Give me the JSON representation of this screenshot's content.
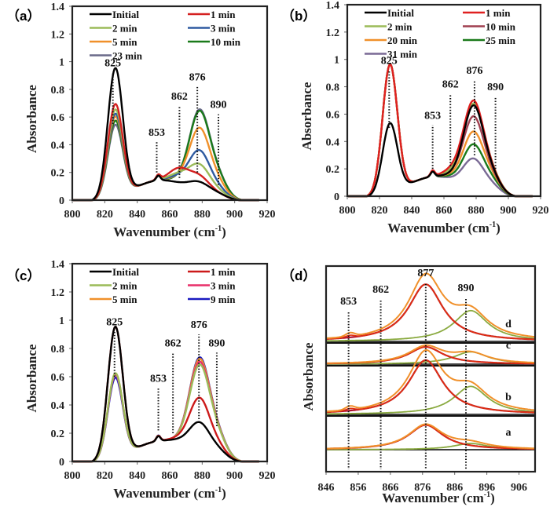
{
  "chart_data": [
    {
      "panel": "(a)",
      "type": "line",
      "xlabel": "Wavenumber (cm-1)",
      "ylabel": "Absorbance",
      "xlim": [
        800,
        920
      ],
      "ylim": [
        0,
        1.4
      ],
      "xticks": [
        "800",
        "820",
        "840",
        "860",
        "880",
        "900",
        "920"
      ],
      "yticks": [
        "0",
        "0.2",
        "0.4",
        "0.6",
        "0.8",
        "1",
        "1.2",
        "1.4"
      ],
      "legend": "top",
      "annotations": [
        {
          "label": "825",
          "x": 825,
          "y0": 0.55,
          "y1": 0.92
        },
        {
          "label": "853",
          "x": 852,
          "y0": 0.2,
          "y1": 0.42
        },
        {
          "label": "862",
          "x": 866,
          "y0": 0.16,
          "y1": 0.68
        },
        {
          "label": "876",
          "x": 877,
          "y0": 0.2,
          "y1": 0.82
        },
        {
          "label": "890",
          "x": 890,
          "y0": 0.11,
          "y1": 0.62
        }
      ],
      "series": [
        {
          "name": "Initial",
          "color": "#000000",
          "p825": 0.93,
          "p853": 0.2,
          "p876": 0.16,
          "p890": 0.06,
          "sh862": 0.0
        },
        {
          "name": "1 min",
          "color": "#d42020",
          "p825": 0.67,
          "p853": 0.2,
          "p876": 0.2,
          "p890": 0.05,
          "sh862": 0.1
        },
        {
          "name": "2 min",
          "color": "#9bbb59",
          "p825": 0.63,
          "p853": 0.21,
          "p876": 0.28,
          "p890": 0.1,
          "sh862": 0.06
        },
        {
          "name": "3 min",
          "color": "#2e5aa0",
          "p825": 0.6,
          "p853": 0.2,
          "p876": 0.38,
          "p890": 0.15,
          "sh862": 0.04
        },
        {
          "name": "5 min",
          "color": "#f0902a",
          "p825": 0.58,
          "p853": 0.21,
          "p876": 0.54,
          "p890": 0.24,
          "sh862": 0.03
        },
        {
          "name": "10 min",
          "color": "#1a7a1a",
          "p825": 0.55,
          "p853": 0.19,
          "p876": 0.66,
          "p890": 0.34,
          "sh862": 0.02
        },
        {
          "name": "23 min",
          "color": "#6a6a8a",
          "p825": 0.52,
          "p853": 0.18,
          "p876": 0.67,
          "p890": 0.35,
          "sh862": 0.02
        }
      ]
    },
    {
      "panel": "(b)",
      "type": "line",
      "xlabel": "Wavenumber (cm-1)",
      "ylabel": "Absorbance",
      "xlim": [
        800,
        920
      ],
      "ylim": [
        0,
        1.4
      ],
      "xticks": [
        "800",
        "820",
        "840",
        "860",
        "880",
        "900",
        "920"
      ],
      "yticks": [
        "0",
        "0.2",
        "0.4",
        "0.6",
        "0.8",
        "1",
        "1.2",
        "1.4"
      ],
      "legend": "top",
      "annotations": [
        {
          "label": "825",
          "x": 826,
          "y0": 0.5,
          "y1": 0.92
        },
        {
          "label": "853",
          "x": 853,
          "y0": 0.2,
          "y1": 0.52
        },
        {
          "label": "862",
          "x": 864,
          "y0": 0.22,
          "y1": 0.75
        },
        {
          "label": "876",
          "x": 879,
          "y0": 0.3,
          "y1": 0.85
        },
        {
          "label": "890",
          "x": 892,
          "y0": 0.2,
          "y1": 0.73
        }
      ],
      "series": [
        {
          "name": "Initial",
          "color": "#000000",
          "p825": 0.51,
          "p853": 0.2,
          "p876": 0.68,
          "p890": 0.3,
          "sh862": 0.02
        },
        {
          "name": "1 min",
          "color": "#e02020",
          "p825": 0.94,
          "p853": 0.24,
          "p876": 0.71,
          "p890": 0.32,
          "sh862": 0.06
        },
        {
          "name": "2 min",
          "color": "#9bbb59",
          "p825": 0.94,
          "p853": 0.23,
          "p876": 0.69,
          "p890": 0.34,
          "sh862": 0.04
        },
        {
          "name": "10 min",
          "color": "#a04050",
          "p825": 0.94,
          "p853": 0.23,
          "p876": 0.6,
          "p890": 0.28,
          "sh862": 0.03
        },
        {
          "name": "20 min",
          "color": "#f0902a",
          "p825": 0.94,
          "p853": 0.23,
          "p876": 0.49,
          "p890": 0.27,
          "sh862": 0.02
        },
        {
          "name": "25 min",
          "color": "#1a7a1a",
          "p825": 0.94,
          "p853": 0.22,
          "p876": 0.4,
          "p890": 0.22,
          "sh862": 0.01
        },
        {
          "name": "31 min",
          "color": "#7a6a95",
          "p825": 0.94,
          "p853": 0.22,
          "p876": 0.3,
          "p890": 0.14,
          "sh862": 0.0
        }
      ]
    },
    {
      "panel": "(c)",
      "type": "line",
      "xlabel": "Wavenumber (cm-1)",
      "ylabel": "Absorbance",
      "xlim": [
        800,
        920
      ],
      "ylim": [
        0,
        1.4
      ],
      "xticks": [
        "800",
        "820",
        "840",
        "860",
        "880",
        "900",
        "920"
      ],
      "yticks": [
        "0",
        "0.2",
        "0.4",
        "0.6",
        "0.8",
        "1",
        "1.2",
        "1.4"
      ],
      "legend": "top",
      "annotations": [
        {
          "label": "825",
          "x": 826,
          "y0": 0.6,
          "y1": 0.92
        },
        {
          "label": "853",
          "x": 853,
          "y0": 0.22,
          "y1": 0.52
        },
        {
          "label": "862",
          "x": 862,
          "y0": 0.2,
          "y1": 0.77
        },
        {
          "label": "876",
          "x": 878,
          "y0": 0.3,
          "y1": 0.9
        },
        {
          "label": "890",
          "x": 889,
          "y0": 0.25,
          "y1": 0.77
        }
      ],
      "series": [
        {
          "name": "Initial",
          "color": "#000000",
          "p825": 0.93,
          "p853": 0.2,
          "p876": 0.3,
          "p890": 0.14,
          "sh862": 0.02
        },
        {
          "name": "1 min",
          "color": "#cc1a1a",
          "p825": 0.93,
          "p853": 0.21,
          "p876": 0.47,
          "p890": 0.2,
          "sh862": 0.03
        },
        {
          "name": "2 min",
          "color": "#9bbb59",
          "p825": 0.6,
          "p853": 0.22,
          "p876": 0.7,
          "p890": 0.36,
          "sh862": 0.02
        },
        {
          "name": "3 min",
          "color": "#e8306a",
          "p825": 0.59,
          "p853": 0.22,
          "p876": 0.72,
          "p890": 0.36,
          "sh862": 0.02
        },
        {
          "name": "5 min",
          "color": "#f0902a",
          "p825": 0.6,
          "p853": 0.22,
          "p876": 0.74,
          "p890": 0.37,
          "sh862": 0.02
        },
        {
          "name": "9 min",
          "color": "#1a1ac0",
          "p825": 0.57,
          "p853": 0.23,
          "p876": 0.75,
          "p890": 0.38,
          "sh862": 0.02
        }
      ]
    },
    {
      "panel": "(d)",
      "type": "line",
      "xlabel": "Wavenumber (cm-1)",
      "ylabel": "Absorbance",
      "xlim": [
        846,
        911
      ],
      "xticks": [
        "846",
        "856",
        "866",
        "876",
        "886",
        "896",
        "906"
      ],
      "yticks": [],
      "legend": "none",
      "annotations": [
        {
          "label": "853",
          "x": 853
        },
        {
          "label": "862",
          "x": 863
        },
        {
          "label": "877",
          "x": 877
        },
        {
          "label": "890",
          "x": 889.5
        }
      ],
      "subpanels": [
        {
          "label": "d",
          "fit877": 1.0,
          "fit890": 0.55,
          "sum": 1.05,
          "has853": true
        },
        {
          "label": "c",
          "fit877": 0.4,
          "fit890": 0.3,
          "sum": 0.42,
          "has853": false
        },
        {
          "label": "b",
          "fit877": 0.95,
          "fit890": 0.5,
          "sum": 1.05,
          "has853": true
        },
        {
          "label": "a",
          "fit877": 0.45,
          "fit890": 0.12,
          "sum": 0.42,
          "has853": false
        }
      ],
      "fit_colors": {
        "peak877": "#b0102a",
        "peak890": "#8aaa40",
        "sum": "#f0902a",
        "raw": "#e03010",
        "baseline": "#000000"
      }
    }
  ]
}
